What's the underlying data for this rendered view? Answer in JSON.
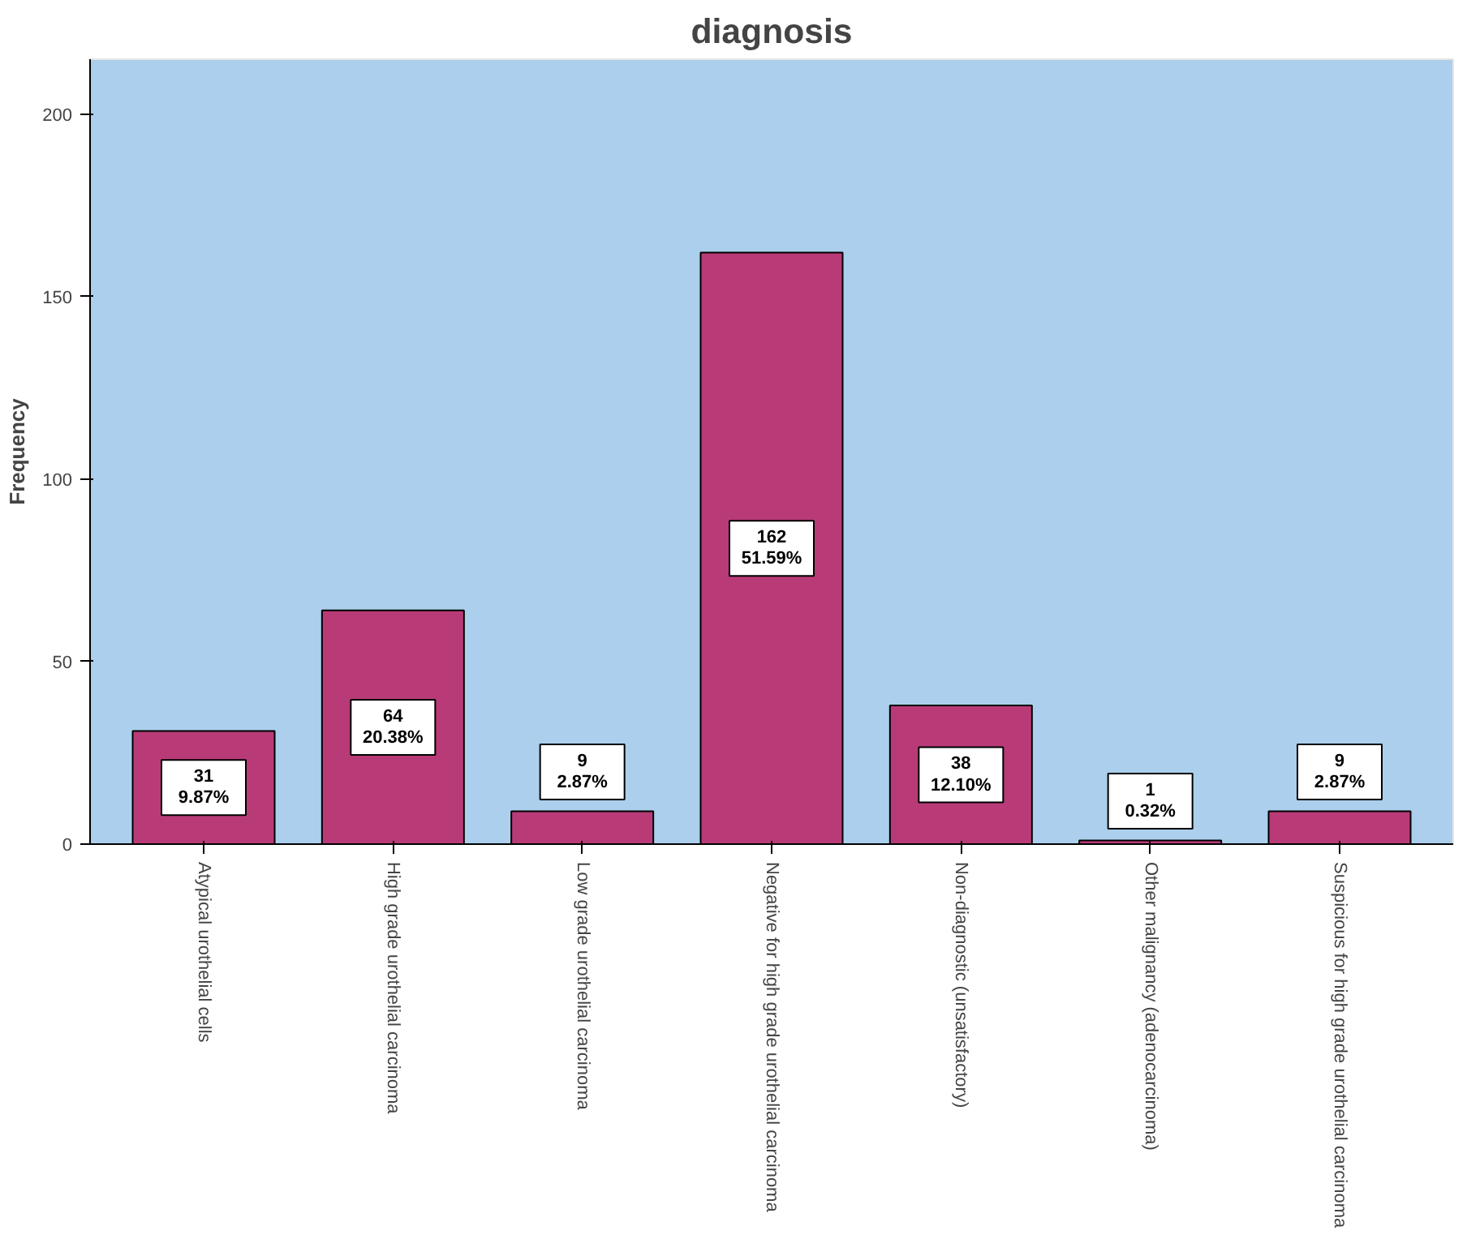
{
  "chart_data": {
    "type": "bar",
    "title": "diagnosis",
    "ylabel": "Frequency",
    "categories": [
      "Atypical urothelial cells",
      "High grade urothelial carcinoma",
      "Low grade urothelial carcinoma",
      "Negative for high grade urothelial carcinoma",
      "Non-diagnostic (unsatisfactory)",
      "Other malignancy (adenocarcinoma)",
      "Suspicious for high grade urothelial carcinoma"
    ],
    "values": [
      31,
      64,
      9,
      162,
      38,
      1,
      9
    ],
    "value_labels": [
      "31\n9.87%",
      "64\n20.38%",
      "9\n2.87%",
      "162\n51.59%",
      "38\n12.10%",
      "1\n0.32%",
      "9\n2.87%"
    ],
    "color": "#b83b78",
    "ylim": [
      0,
      215
    ],
    "yticks": [
      0,
      50,
      100,
      150,
      200
    ],
    "grid": false
  }
}
